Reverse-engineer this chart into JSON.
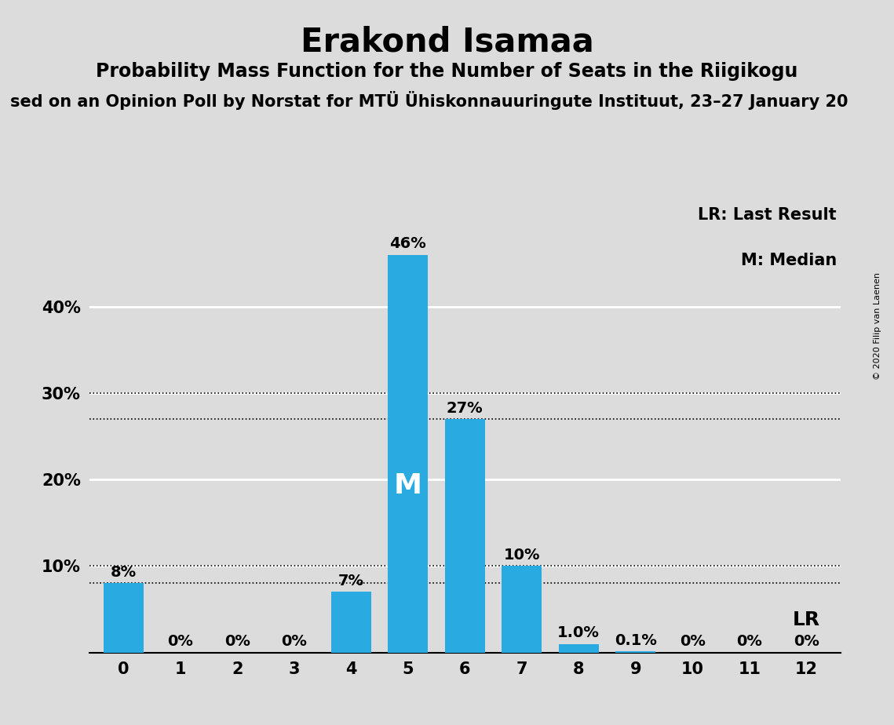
{
  "title": "Erakond Isamaa",
  "subtitle1": "Probability Mass Function for the Number of Seats in the Riigikogu",
  "subtitle2": "sed on an Opinion Poll by Norstat for MTÜ Ühiskonnauuringute Instituut, 23–27 January 20",
  "copyright": "© 2020 Filip van Laenen",
  "categories": [
    0,
    1,
    2,
    3,
    4,
    5,
    6,
    7,
    8,
    9,
    10,
    11,
    12
  ],
  "values": [
    0.08,
    0.0,
    0.0,
    0.0,
    0.07,
    0.46,
    0.27,
    0.1,
    0.01,
    0.001,
    0.0,
    0.0,
    0.0
  ],
  "labels": [
    "8%",
    "0%",
    "0%",
    "0%",
    "7%",
    "46%",
    "27%",
    "10%",
    "1.0%",
    "0.1%",
    "0%",
    "0%",
    "0%"
  ],
  "bar_color": "#29ABE2",
  "median_bar": 5,
  "median_label": "M",
  "lr_label": "LR",
  "legend_lr": "LR: Last Result",
  "legend_m": "M: Median",
  "background_color": "#DCDCDC",
  "ylim": [
    0,
    0.52
  ],
  "yticks": [
    0.1,
    0.2,
    0.3,
    0.4
  ],
  "ytick_labels": [
    "10%",
    "20%",
    "30%",
    "40%"
  ],
  "dotted_lines": [
    0.08,
    0.1,
    0.27,
    0.1
  ],
  "title_fontsize": 30,
  "subtitle1_fontsize": 17,
  "subtitle2_fontsize": 15,
  "bar_label_fontsize": 14,
  "axis_fontsize": 15
}
